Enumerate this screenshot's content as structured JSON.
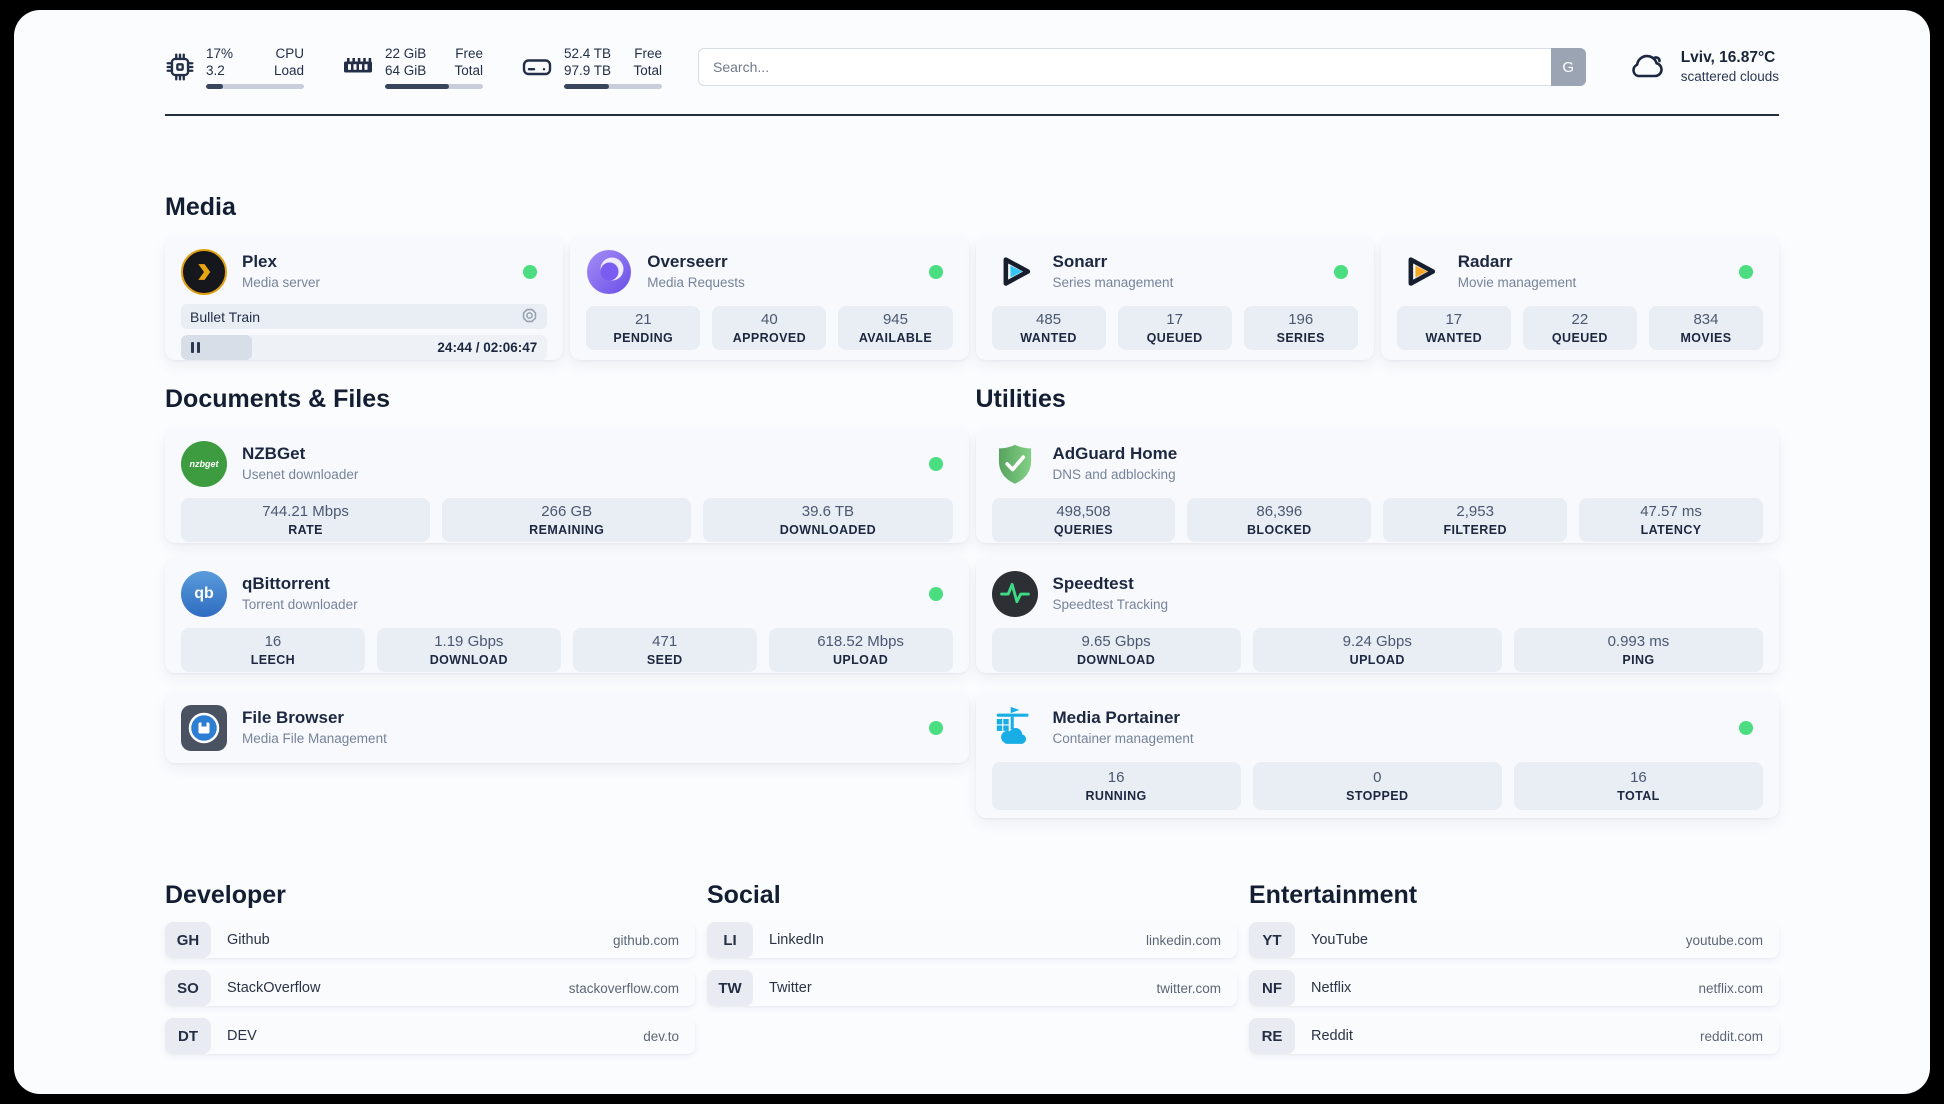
{
  "header": {
    "system": {
      "cpu": {
        "value_top": "17%",
        "value_bottom": "3.2",
        "label_top": "CPU",
        "label_bottom": "Load",
        "progress": 17
      },
      "memory": {
        "value_top": "22 GiB",
        "value_bottom": "64 GiB",
        "label_top": "Free",
        "label_bottom": "Total",
        "progress": 65
      },
      "disk": {
        "value_top": "52.4 TB",
        "value_bottom": "97.9 TB",
        "label_top": "Free",
        "label_bottom": "Total",
        "progress": 46
      }
    },
    "search": {
      "placeholder": "Search...",
      "button_label": "G"
    },
    "weather": {
      "title": "Lviv, 16.87°C",
      "subtitle": "scattered clouds"
    }
  },
  "sections": {
    "media": {
      "title": "Media"
    },
    "documents": {
      "title": "Documents & Files"
    },
    "utilities": {
      "title": "Utilities"
    }
  },
  "apps": {
    "plex": {
      "name": "Plex",
      "description": "Media server",
      "online": true,
      "now_playing": "Bullet Train",
      "time": "24:44 / 02:06:47",
      "progress_percent": 19.5
    },
    "overseerr": {
      "name": "Overseerr",
      "description": "Media Requests",
      "online": true,
      "stats": [
        {
          "value": "21",
          "label": "PENDING"
        },
        {
          "value": "40",
          "label": "APPROVED"
        },
        {
          "value": "945",
          "label": "AVAILABLE"
        }
      ]
    },
    "sonarr": {
      "name": "Sonarr",
      "description": "Series management",
      "online": true,
      "stats": [
        {
          "value": "485",
          "label": "WANTED"
        },
        {
          "value": "17",
          "label": "QUEUED"
        },
        {
          "value": "196",
          "label": "SERIES"
        }
      ]
    },
    "radarr": {
      "name": "Radarr",
      "description": "Movie management",
      "online": true,
      "stats": [
        {
          "value": "17",
          "label": "WANTED"
        },
        {
          "value": "22",
          "label": "QUEUED"
        },
        {
          "value": "834",
          "label": "MOVIES"
        }
      ]
    },
    "nzbget": {
      "name": "NZBGet",
      "description": "Usenet downloader",
      "online": true,
      "icon_text": "nzbget",
      "stats": [
        {
          "value": "744.21 Mbps",
          "label": "RATE"
        },
        {
          "value": "266 GB",
          "label": "REMAINING"
        },
        {
          "value": "39.6 TB",
          "label": "DOWNLOADED"
        }
      ]
    },
    "qbittorrent": {
      "name": "qBittorrent",
      "description": "Torrent downloader",
      "online": true,
      "icon_text": "qb",
      "stats": [
        {
          "value": "16",
          "label": "LEECH"
        },
        {
          "value": "1.19 Gbps",
          "label": "DOWNLOAD"
        },
        {
          "value": "471",
          "label": "SEED"
        },
        {
          "value": "618.52 Mbps",
          "label": "UPLOAD"
        }
      ]
    },
    "filebrowser": {
      "name": "File Browser",
      "description": "Media File Management",
      "online": true
    },
    "adguard": {
      "name": "AdGuard Home",
      "description": "DNS and adblocking",
      "online": false,
      "stats": [
        {
          "value": "498,508",
          "label": "QUERIES"
        },
        {
          "value": "86,396",
          "label": "BLOCKED"
        },
        {
          "value": "2,953",
          "label": "FILTERED"
        },
        {
          "value": "47.57 ms",
          "label": "LATENCY"
        }
      ]
    },
    "speedtest": {
      "name": "Speedtest",
      "description": "Speedtest Tracking",
      "online": false,
      "stats": [
        {
          "value": "9.65 Gbps",
          "label": "DOWNLOAD"
        },
        {
          "value": "9.24 Gbps",
          "label": "UPLOAD"
        },
        {
          "value": "0.993 ms",
          "label": "PING"
        }
      ]
    },
    "portainer": {
      "name": "Media Portainer",
      "description": "Container management",
      "online": true,
      "stats": [
        {
          "value": "16",
          "label": "RUNNING"
        },
        {
          "value": "0",
          "label": "STOPPED"
        },
        {
          "value": "16",
          "label": "TOTAL"
        }
      ]
    }
  },
  "bookmarks": {
    "developer": {
      "title": "Developer",
      "items": [
        {
          "abbr": "GH",
          "name": "Github",
          "url": "github.com"
        },
        {
          "abbr": "SO",
          "name": "StackOverflow",
          "url": "stackoverflow.com"
        },
        {
          "abbr": "DT",
          "name": "DEV",
          "url": "dev.to"
        }
      ]
    },
    "social": {
      "title": "Social",
      "items": [
        {
          "abbr": "LI",
          "name": "LinkedIn",
          "url": "linkedin.com"
        },
        {
          "abbr": "TW",
          "name": "Twitter",
          "url": "twitter.com"
        }
      ]
    },
    "entertainment": {
      "title": "Entertainment",
      "items": [
        {
          "abbr": "YT",
          "name": "YouTube",
          "url": "youtube.com"
        },
        {
          "abbr": "NF",
          "name": "Netflix",
          "url": "netflix.com"
        },
        {
          "abbr": "RE",
          "name": "Reddit",
          "url": "reddit.com"
        }
      ]
    }
  },
  "colors": {
    "status_online": "#4ade80",
    "accent_dark": "#232f48",
    "plex_amber": "#e8a511",
    "sonarr_cyan": "#33c5f4",
    "radarr_amber": "#f9a825",
    "portainer_blue": "#18aee5",
    "adguard_green": "#6cbb70",
    "speedtest_pulse": "#3ddc84"
  }
}
